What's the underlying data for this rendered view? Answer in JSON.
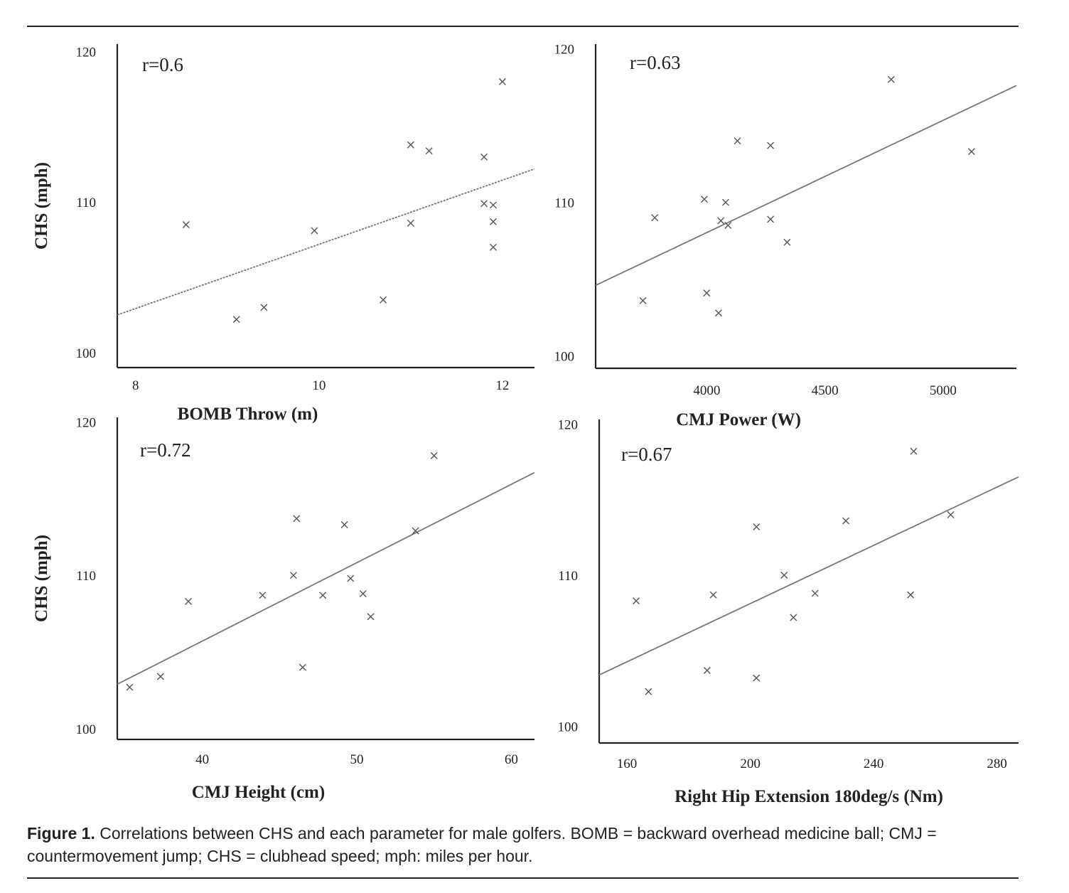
{
  "caption": {
    "label": "Figure 1.",
    "text": "Correlations between CHS and each parameter for male golfers. BOMB = backward overhead medicine ball; CMJ = countermovement jump; CHS = clubhead speed; mph: miles per hour."
  },
  "chart_data": [
    {
      "type": "scatter",
      "title": "",
      "annotation": "r=0.6",
      "xlabel": "BOMB Throw (m)",
      "ylabel": "CHS (mph)",
      "xticks": [
        "8",
        "10",
        "12"
      ],
      "yticks": [
        "100",
        "110",
        "120"
      ],
      "xlim": [
        7.8,
        12.35
      ],
      "ylim": [
        99,
        120.5
      ],
      "points": [
        {
          "x": 8.55,
          "y": 108.5
        },
        {
          "x": 9.1,
          "y": 102.2
        },
        {
          "x": 9.4,
          "y": 103.0
        },
        {
          "x": 9.95,
          "y": 108.1
        },
        {
          "x": 10.7,
          "y": 103.5
        },
        {
          "x": 11.0,
          "y": 113.8
        },
        {
          "x": 11.0,
          "y": 108.6
        },
        {
          "x": 11.2,
          "y": 113.4
        },
        {
          "x": 11.8,
          "y": 113.0
        },
        {
          "x": 11.8,
          "y": 109.9
        },
        {
          "x": 11.9,
          "y": 109.8
        },
        {
          "x": 11.9,
          "y": 108.7
        },
        {
          "x": 11.9,
          "y": 107.0
        },
        {
          "x": 12.0,
          "y": 118.0
        }
      ],
      "trendline": {
        "x": [
          7.8,
          12.35
        ],
        "y": [
          102.5,
          112.2
        ]
      }
    },
    {
      "type": "scatter",
      "title": "",
      "annotation": "r=0.63",
      "xlabel": "CMJ Power (W)",
      "ylabel": "CHS (mph)",
      "xticks": [
        "4000",
        "4500",
        "5000"
      ],
      "yticks": [
        "100",
        "110",
        "120"
      ],
      "xlim": [
        3530,
        5310
      ],
      "ylim": [
        99.2,
        120.3
      ],
      "points": [
        {
          "x": 3730,
          "y": 103.6
        },
        {
          "x": 3780,
          "y": 109.0
        },
        {
          "x": 3990,
          "y": 110.2
        },
        {
          "x": 4000,
          "y": 104.1
        },
        {
          "x": 4050,
          "y": 102.8
        },
        {
          "x": 4060,
          "y": 108.8
        },
        {
          "x": 4080,
          "y": 110.0
        },
        {
          "x": 4090,
          "y": 108.5
        },
        {
          "x": 4130,
          "y": 114.0
        },
        {
          "x": 4270,
          "y": 113.7
        },
        {
          "x": 4270,
          "y": 108.9
        },
        {
          "x": 4340,
          "y": 107.4
        },
        {
          "x": 4780,
          "y": 118.0
        },
        {
          "x": 5120,
          "y": 113.3
        }
      ],
      "trendline": {
        "x": [
          3530,
          5310
        ],
        "y": [
          104.6,
          117.6
        ]
      }
    },
    {
      "type": "scatter",
      "title": "",
      "annotation": "r=0.72",
      "xlabel": "CMJ Height (cm)",
      "ylabel": "CHS (mph)",
      "xticks": [
        "40",
        "50",
        "60"
      ],
      "yticks": [
        "100",
        "110",
        "120"
      ],
      "xlim": [
        34.5,
        61.5
      ],
      "ylim": [
        99.3,
        120.3
      ],
      "points": [
        {
          "x": 35.3,
          "y": 102.7
        },
        {
          "x": 37.3,
          "y": 103.4
        },
        {
          "x": 39.1,
          "y": 108.3
        },
        {
          "x": 43.9,
          "y": 108.7
        },
        {
          "x": 45.9,
          "y": 110.0
        },
        {
          "x": 46.1,
          "y": 113.7
        },
        {
          "x": 46.5,
          "y": 104.0
        },
        {
          "x": 47.8,
          "y": 108.7
        },
        {
          "x": 49.2,
          "y": 113.3
        },
        {
          "x": 49.6,
          "y": 109.8
        },
        {
          "x": 50.4,
          "y": 108.8
        },
        {
          "x": 50.9,
          "y": 107.3
        },
        {
          "x": 53.8,
          "y": 112.9
        },
        {
          "x": 55.0,
          "y": 117.8
        }
      ],
      "trendline": {
        "x": [
          34.5,
          61.5
        ],
        "y": [
          102.9,
          116.7
        ]
      }
    },
    {
      "type": "scatter",
      "title": "",
      "annotation": "r=0.67",
      "xlabel": "Right Hip Extension 180deg/s (Nm)",
      "ylabel": "",
      "xticks": [
        "160",
        "200",
        "240",
        "280"
      ],
      "yticks": [
        "100",
        "110",
        "120"
      ],
      "xlim": [
        151,
        287
      ],
      "ylim": [
        98.9,
        120.3
      ],
      "points": [
        {
          "x": 163,
          "y": 108.3
        },
        {
          "x": 167,
          "y": 102.3
        },
        {
          "x": 186,
          "y": 103.7
        },
        {
          "x": 188,
          "y": 108.7
        },
        {
          "x": 202,
          "y": 113.2
        },
        {
          "x": 202,
          "y": 103.2
        },
        {
          "x": 211,
          "y": 110.0
        },
        {
          "x": 214,
          "y": 107.2
        },
        {
          "x": 221,
          "y": 108.8
        },
        {
          "x": 231,
          "y": 113.6
        },
        {
          "x": 253,
          "y": 118.2
        },
        {
          "x": 252,
          "y": 108.7
        },
        {
          "x": 265,
          "y": 114.0
        }
      ],
      "trendline": {
        "x": [
          151,
          287
        ],
        "y": [
          103.4,
          116.5
        ]
      }
    }
  ]
}
